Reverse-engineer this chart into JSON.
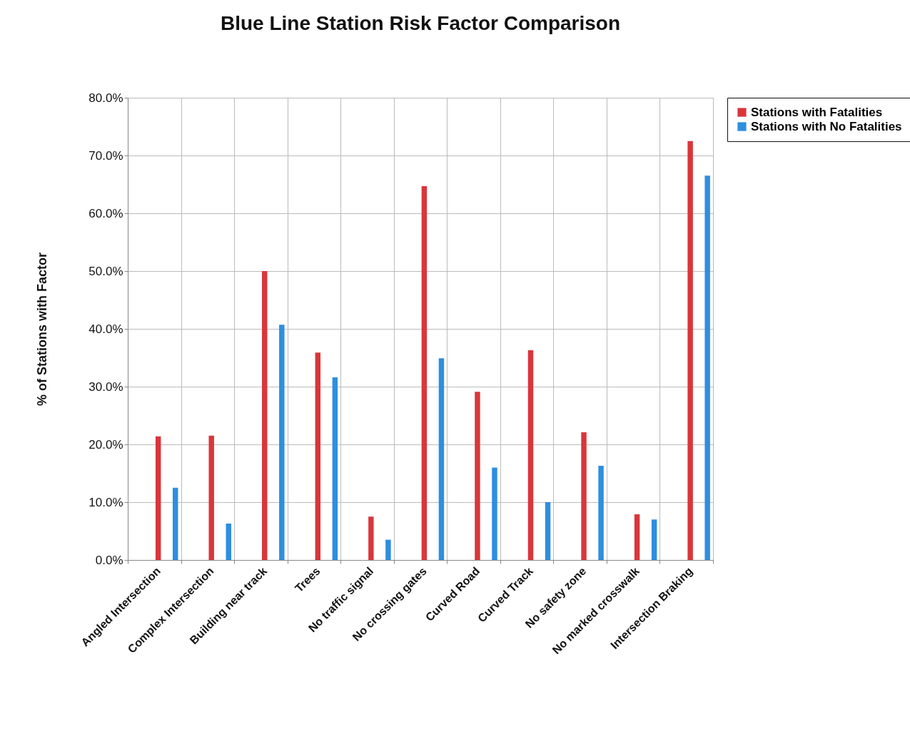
{
  "chart_data": {
    "type": "bar",
    "title": "Blue Line Station Risk Factor Comparison",
    "ylabel": "% of Stations with Factor",
    "categories": [
      "Angled Intersection",
      "Complex Intersection",
      "Building near track",
      "Trees",
      "No traffic signal",
      "No crossing gates",
      "Curved Road",
      "Curved Track",
      "No safety zone",
      "No marked crosswalk",
      "Intersection Braking"
    ],
    "series": [
      {
        "name": "Stations with Fatalities",
        "color": "#d9363b",
        "values": [
          21.4,
          21.5,
          50.0,
          35.9,
          7.5,
          64.7,
          29.1,
          36.3,
          22.1,
          7.9,
          72.5
        ]
      },
      {
        "name": "Stations with No Fatalities",
        "color": "#2e8ee0",
        "values": [
          12.5,
          6.3,
          40.7,
          31.6,
          3.5,
          34.9,
          16.0,
          10.0,
          16.3,
          7.0,
          66.5
        ]
      }
    ],
    "ylim": [
      0,
      80
    ],
    "yticks": [
      {
        "value": 0,
        "label": "0.0%"
      },
      {
        "value": 10,
        "label": "10.0%"
      },
      {
        "value": 20,
        "label": "20.0%"
      },
      {
        "value": 30,
        "label": "30.0%"
      },
      {
        "value": 40,
        "label": "40.0%"
      },
      {
        "value": 50,
        "label": "50.0%"
      },
      {
        "value": 60,
        "label": "60.0%"
      },
      {
        "value": 70,
        "label": "70.0%"
      },
      {
        "value": 80,
        "label": "80.0%"
      }
    ],
    "grid": true,
    "legend": "right"
  }
}
